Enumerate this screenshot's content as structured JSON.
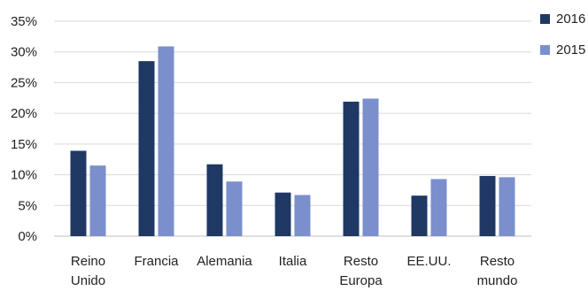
{
  "chart_data": {
    "type": "bar",
    "categories": [
      [
        "Reino",
        "Unido"
      ],
      [
        "Francia"
      ],
      [
        "Alemania"
      ],
      [
        "Italia"
      ],
      [
        "Resto",
        "Europa"
      ],
      [
        "EE.UU."
      ],
      [
        "Resto",
        "mundo"
      ]
    ],
    "series": [
      {
        "name": "2016",
        "color": "#1f3864",
        "values": [
          13.9,
          28.5,
          11.7,
          7.1,
          21.9,
          6.6,
          9.8
        ]
      },
      {
        "name": "2015",
        "color": "#7a8fcc",
        "values": [
          11.5,
          30.9,
          8.9,
          6.7,
          22.4,
          9.3,
          9.6
        ]
      }
    ],
    "y_ticks": [
      "0%",
      "5%",
      "10%",
      "15%",
      "20%",
      "25%",
      "30%",
      "35%"
    ],
    "ylim": [
      0,
      35
    ],
    "y_step": 5,
    "grid": true,
    "legend_position": "right",
    "title": "",
    "xlabel": "",
    "ylabel": ""
  }
}
